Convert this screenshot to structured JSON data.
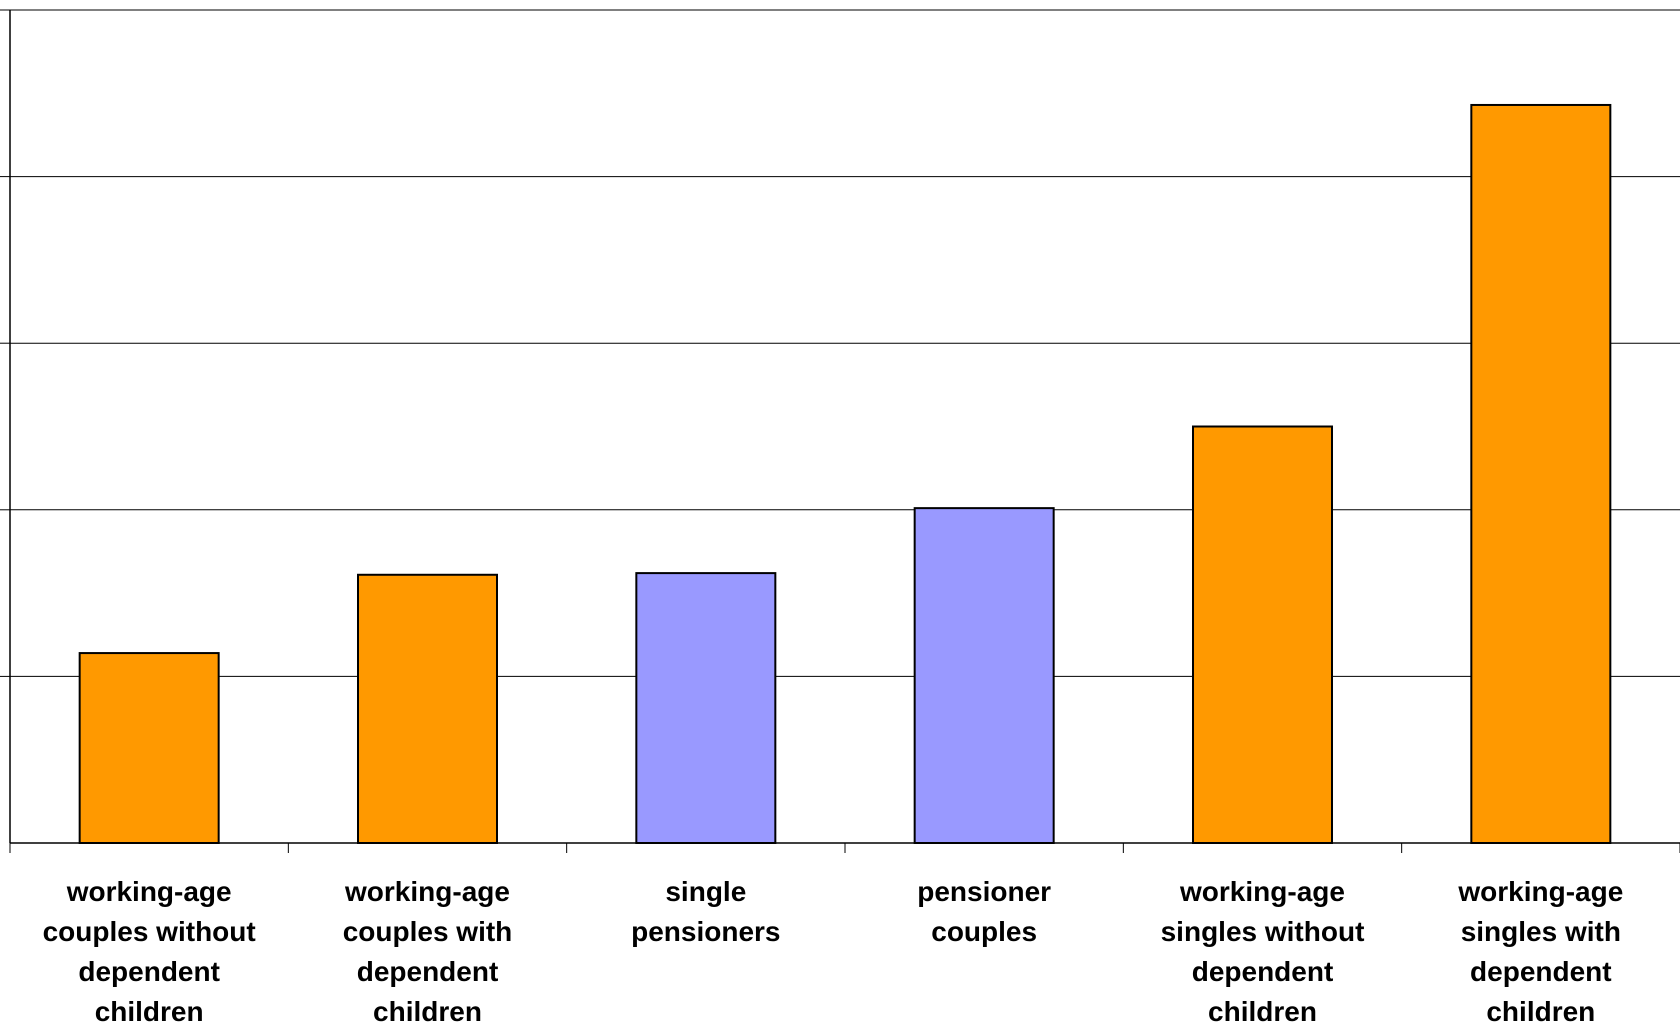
{
  "chart_data": {
    "type": "bar",
    "title": "",
    "xlabel": "",
    "ylabel": "",
    "ylim": [
      0,
      5
    ],
    "grid": true,
    "categories": [
      "working-age couples without dependent children",
      "working-age couples with dependent children",
      "single pensioners",
      "pensioner couples",
      "working-age singles without dependent children",
      "working-age singles with dependent children"
    ],
    "category_lines": [
      [
        "working-age",
        "couples without",
        "dependent",
        "children"
      ],
      [
        "working-age",
        "couples with",
        "dependent",
        "children"
      ],
      [
        "single",
        "pensioners"
      ],
      [
        "pensioner",
        "couples"
      ],
      [
        "working-age",
        "singles without",
        "dependent",
        "children"
      ],
      [
        "working-age",
        "singles with",
        "dependent",
        "children"
      ]
    ],
    "values": [
      1.14,
      1.61,
      1.62,
      2.01,
      2.5,
      4.43
    ],
    "bar_colors": [
      "#FF9900",
      "#FF9900",
      "#9999FF",
      "#9999FF",
      "#FF9900",
      "#FF9900"
    ],
    "bar_stroke": "#000000",
    "grid_color": "#000000"
  }
}
